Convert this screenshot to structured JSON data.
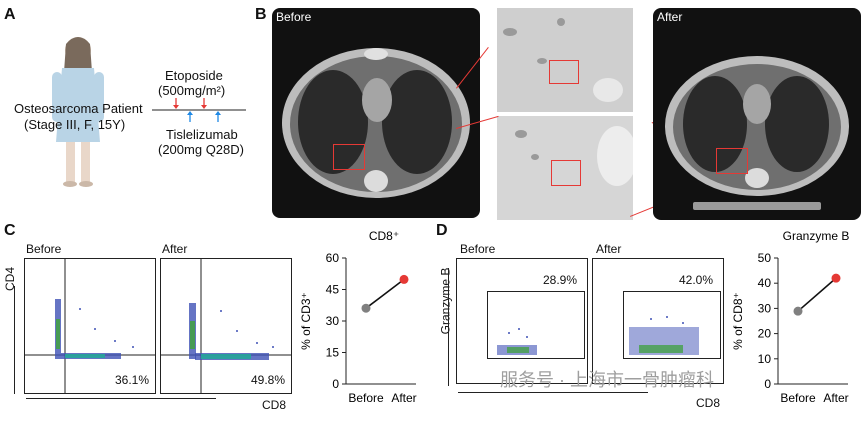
{
  "panel_a": {
    "letter": "A",
    "patient": "Osteosarcoma Patient",
    "patient_detail": "(Stage III, F, 15Y)",
    "drug1": "Etoposide",
    "drug1_dose": "(500mg/m²)",
    "drug2": "Tislelizumab",
    "drug2_dose": "(200mg Q28D)"
  },
  "panel_b": {
    "letter": "B",
    "before_label": "Before",
    "after_label": "After"
  },
  "panel_c": {
    "letter": "C",
    "before_label": "Before",
    "after_label": "After",
    "y_axis": "CD4",
    "x_axis": "CD8",
    "before_pct": "36.1%",
    "after_pct": "49.8%",
    "chart_title": "CD8⁺",
    "chart_ylabel": "% of CD3⁺"
  },
  "panel_d": {
    "letter": "D",
    "before_label": "Before",
    "after_label": "After",
    "y_axis": "Granzyme B",
    "x_axis": "CD8",
    "before_pct": "28.9%",
    "after_pct": "42.0%",
    "chart_title": "Granzyme B",
    "chart_ylabel": "% of CD8⁺"
  },
  "watermark": "服务号 · 上海市一骨肿瘤科",
  "chart_data": [
    {
      "type": "line",
      "title": "CD8⁺",
      "ylabel": "% of CD3⁺",
      "categories": [
        "Before",
        "After"
      ],
      "values": [
        36.1,
        49.8
      ],
      "ylim": [
        0,
        60
      ],
      "yticks": [
        0,
        15,
        30,
        45,
        60
      ],
      "colors": [
        "#808080",
        "#e53935"
      ]
    },
    {
      "type": "line",
      "title": "Granzyme B",
      "ylabel": "% of CD8⁺",
      "categories": [
        "Before",
        "After"
      ],
      "values": [
        28.9,
        42.0
      ],
      "ylim": [
        0,
        50
      ],
      "yticks": [
        0,
        10,
        20,
        30,
        40,
        50
      ],
      "colors": [
        "#808080",
        "#e53935"
      ]
    }
  ]
}
